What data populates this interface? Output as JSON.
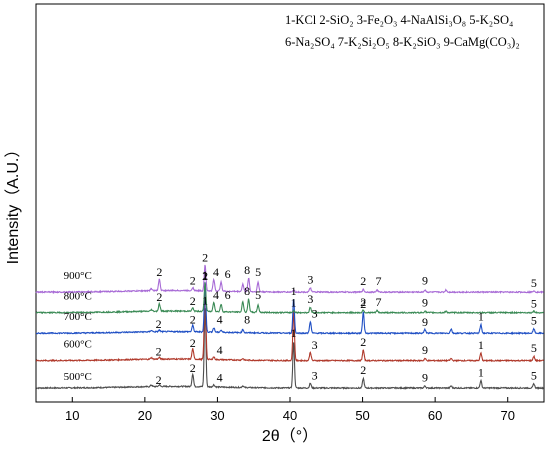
{
  "chart_data": {
    "type": "line",
    "xlabel": "2θ（°）",
    "ylabel": "Intensity（A.U.）",
    "xlim": [
      5,
      75
    ],
    "xticks": [
      10,
      20,
      30,
      40,
      50,
      60,
      70
    ],
    "grid": false,
    "legend_lines": [
      "1-KCl   2-SiO₂   3-Fe₂O₃   4-NaAlSi₃O₈   5-K₂SO₄",
      "6-Na₂SO₄   7-K₂Si₂O₅   8-K₂SiO₃   9-CaMg(CO₃)₂"
    ],
    "series": [
      {
        "name": "500°C",
        "color": "#4d4d4d",
        "baseline": 0.0,
        "peaks": [
          [
            20.9,
            3
          ],
          [
            22.0,
            3
          ],
          [
            26.6,
            24
          ],
          [
            28.3,
            150
          ],
          [
            29.5,
            4
          ],
          [
            33.5,
            3
          ],
          [
            40.5,
            88
          ],
          [
            42.8,
            9
          ],
          [
            50.1,
            18
          ],
          [
            58.6,
            4
          ],
          [
            62.2,
            4
          ],
          [
            66.3,
            14
          ],
          [
            73.6,
            8
          ]
        ],
        "labels": [
          [
            "2",
            21.9,
            8
          ],
          [
            "2",
            26.6,
            30
          ],
          [
            "1",
            28.3,
            158
          ],
          [
            "4",
            30.3,
            12
          ],
          [
            "1",
            40.5,
            96
          ],
          [
            "3",
            43.4,
            16
          ],
          [
            "2",
            50.1,
            26
          ],
          [
            "9",
            58.6,
            12
          ],
          [
            "1",
            66.3,
            22
          ],
          [
            "5",
            73.6,
            16
          ]
        ]
      },
      {
        "name": "600°C",
        "color": "#b0392b",
        "baseline": 2.0,
        "peaks": [
          [
            20.9,
            3
          ],
          [
            22.0,
            3
          ],
          [
            26.6,
            20
          ],
          [
            28.3,
            145
          ],
          [
            29.5,
            5
          ],
          [
            33.5,
            3
          ],
          [
            40.5,
            95
          ],
          [
            42.8,
            16
          ],
          [
            50.1,
            20
          ],
          [
            58.6,
            4
          ],
          [
            62.2,
            4
          ],
          [
            66.3,
            14
          ],
          [
            73.6,
            8
          ]
        ],
        "labels": [
          [
            "2",
            21.9,
            10
          ],
          [
            "2",
            26.6,
            26
          ],
          [
            "1",
            28.3,
            152
          ],
          [
            "4",
            30.3,
            12
          ],
          [
            "1",
            40.5,
            102
          ],
          [
            "3",
            43.4,
            22
          ],
          [
            "2",
            50.1,
            28
          ],
          [
            "9",
            58.6,
            12
          ],
          [
            "1",
            66.3,
            22
          ],
          [
            "5",
            73.6,
            16
          ]
        ]
      },
      {
        "name": "700°C",
        "color": "#1f4fc4",
        "baseline": 4.0,
        "peaks": [
          [
            20.9,
            3
          ],
          [
            22.0,
            3
          ],
          [
            26.6,
            12
          ],
          [
            28.3,
            95
          ],
          [
            29.5,
            8
          ],
          [
            30.5,
            4
          ],
          [
            33.5,
            6
          ],
          [
            40.5,
            65
          ],
          [
            42.8,
            22
          ],
          [
            50.1,
            40
          ],
          [
            58.6,
            7
          ],
          [
            62.2,
            8
          ],
          [
            66.3,
            16
          ],
          [
            73.6,
            8
          ]
        ],
        "labels": [
          [
            "2",
            21.9,
            10
          ],
          [
            "2",
            26.6,
            18
          ],
          [
            "1",
            28.3,
            102
          ],
          [
            "4",
            30.3,
            18
          ],
          [
            "8",
            34.1,
            18
          ],
          [
            "1",
            40.5,
            72
          ],
          [
            "3",
            43.4,
            30
          ],
          [
            "2",
            50.1,
            48
          ],
          [
            "9",
            58.6,
            14
          ],
          [
            "1",
            66.3,
            24
          ],
          [
            "5",
            73.6,
            16
          ]
        ]
      },
      {
        "name": "800°C",
        "color": "#3a8a55",
        "baseline": 5.5,
        "peaks": [
          [
            20.9,
            3
          ],
          [
            22.0,
            14
          ],
          [
            26.6,
            6
          ],
          [
            28.3,
            55
          ],
          [
            29.5,
            18
          ],
          [
            30.5,
            14
          ],
          [
            33.5,
            20
          ],
          [
            34.3,
            25
          ],
          [
            35.6,
            14
          ],
          [
            40.5,
            4
          ],
          [
            42.8,
            10
          ],
          [
            50.1,
            5
          ],
          [
            52.0,
            4
          ],
          [
            58.6,
            3
          ],
          [
            61.5,
            3
          ],
          [
            73.6,
            3
          ]
        ],
        "labels": [
          [
            "2",
            22.0,
            22
          ],
          [
            "2",
            26.6,
            14
          ],
          [
            "2",
            28.3,
            62
          ],
          [
            "4",
            29.8,
            26
          ],
          [
            "6",
            31.4,
            26
          ],
          [
            "8",
            34.1,
            33
          ],
          [
            "5",
            35.6,
            26
          ],
          [
            "3",
            42.8,
            18
          ],
          [
            "2",
            50.1,
            13
          ],
          [
            "7",
            52.2,
            13
          ],
          [
            "9",
            58.6,
            12
          ],
          [
            "5",
            73.6,
            10
          ]
        ]
      },
      {
        "name": "900°C",
        "color": "#a86bd6",
        "baseline": 7.0,
        "peaks": [
          [
            20.9,
            4
          ],
          [
            22.0,
            22
          ],
          [
            26.6,
            6
          ],
          [
            28.3,
            50
          ],
          [
            29.5,
            22
          ],
          [
            30.5,
            18
          ],
          [
            33.5,
            14
          ],
          [
            34.3,
            26
          ],
          [
            35.6,
            18
          ],
          [
            40.5,
            4
          ],
          [
            42.8,
            8
          ],
          [
            50.1,
            5
          ],
          [
            52.0,
            4
          ],
          [
            58.6,
            4
          ],
          [
            61.5,
            4
          ],
          [
            73.6,
            3
          ]
        ],
        "labels": [
          [
            "2",
            22.0,
            30
          ],
          [
            "2",
            26.6,
            14
          ],
          [
            "2",
            28.3,
            58
          ],
          [
            "4",
            29.8,
            30
          ],
          [
            "6",
            31.4,
            27
          ],
          [
            "8",
            34.1,
            34
          ],
          [
            "5",
            35.6,
            30
          ],
          [
            "3",
            42.8,
            16
          ],
          [
            "2",
            50.1,
            13
          ],
          [
            "7",
            52.2,
            13
          ],
          [
            "9",
            58.6,
            14
          ],
          [
            "5",
            73.6,
            10
          ]
        ]
      }
    ]
  }
}
